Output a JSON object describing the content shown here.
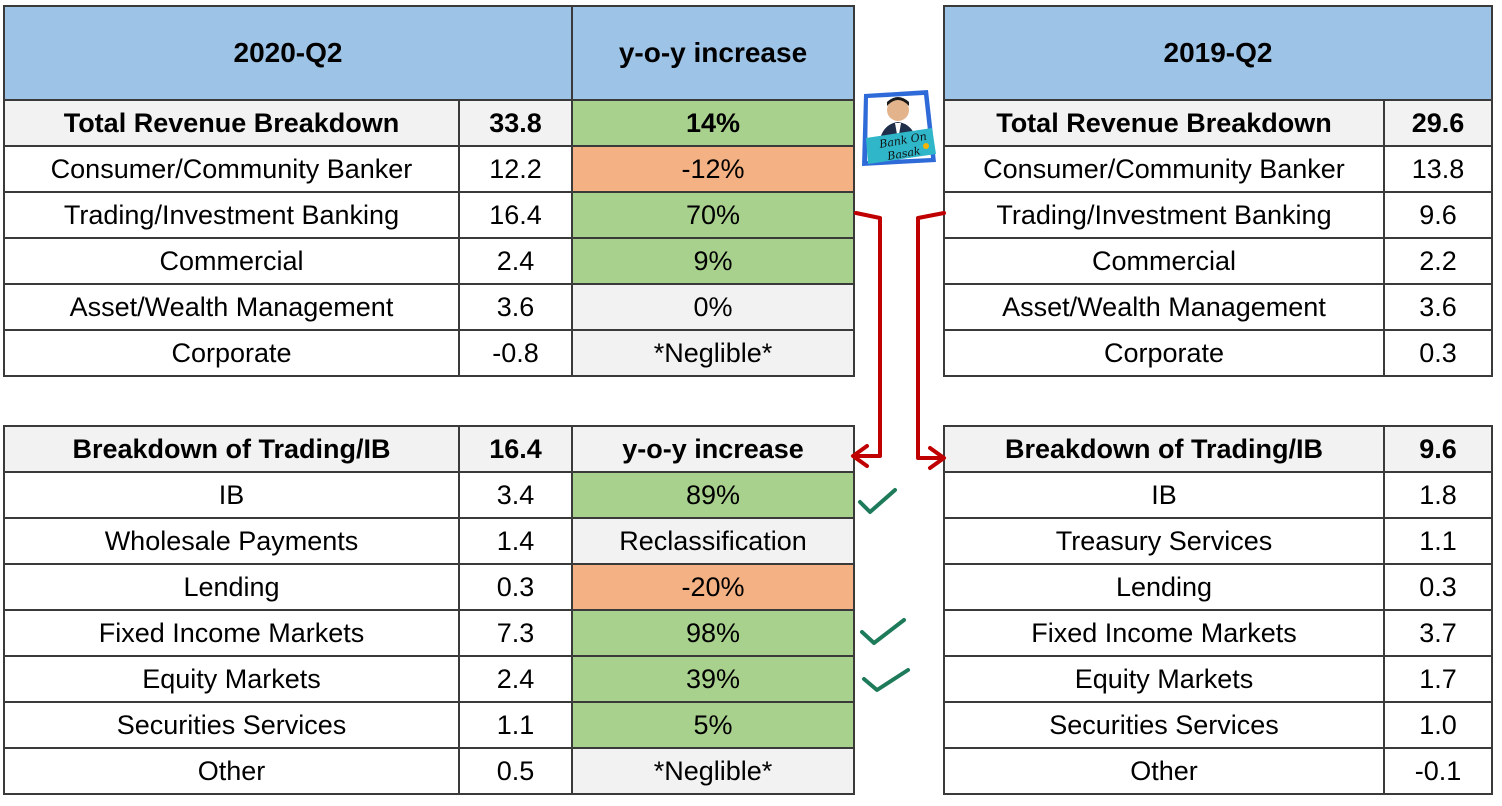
{
  "top_left": {
    "title": "2020-Q2",
    "yoy_title": "y-o-y increase",
    "total_label": "Total Revenue Breakdown",
    "total_value": "33.8",
    "total_yoy": "14%",
    "rows": [
      {
        "label": "Consumer/Community Banker",
        "value": "12.2",
        "yoy": "-12%"
      },
      {
        "label": "Trading/Investment Banking",
        "value": "16.4",
        "yoy": "70%"
      },
      {
        "label": "Commercial",
        "value": "2.4",
        "yoy": "9%"
      },
      {
        "label": "Asset/Wealth Management",
        "value": "3.6",
        "yoy": "0%"
      },
      {
        "label": "Corporate",
        "value": "-0.8",
        "yoy": "*Neglible*"
      }
    ]
  },
  "top_right": {
    "title": "2019-Q2",
    "total_label": "Total Revenue Breakdown",
    "total_value": "29.6",
    "rows": [
      {
        "label": "Consumer/Community Banker",
        "value": "13.8"
      },
      {
        "label": "Trading/Investment Banking",
        "value": "9.6"
      },
      {
        "label": "Commercial",
        "value": "2.2"
      },
      {
        "label": "Asset/Wealth Management",
        "value": "3.6"
      },
      {
        "label": "Corporate",
        "value": "0.3"
      }
    ]
  },
  "bottom_left": {
    "header_label": "Breakdown of Trading/IB",
    "header_value": "16.4",
    "header_yoy": "y-o-y increase",
    "rows": [
      {
        "label": "IB",
        "value": "3.4",
        "yoy": "89%"
      },
      {
        "label": "Wholesale Payments",
        "value": "1.4",
        "yoy": "Reclassification"
      },
      {
        "label": "Lending",
        "value": "0.3",
        "yoy": "-20%"
      },
      {
        "label": "Fixed Income Markets",
        "value": "7.3",
        "yoy": "98%"
      },
      {
        "label": "Equity Markets",
        "value": "2.4",
        "yoy": "39%"
      },
      {
        "label": "Securities Services",
        "value": "1.1",
        "yoy": "5%"
      },
      {
        "label": "Other",
        "value": "0.5",
        "yoy": "*Neglible*"
      }
    ]
  },
  "bottom_right": {
    "header_label": "Breakdown of Trading/IB",
    "header_value": "9.6",
    "rows": [
      {
        "label": "IB",
        "value": "1.8"
      },
      {
        "label": "Treasury Services",
        "value": "1.1"
      },
      {
        "label": "Lending",
        "value": "0.3"
      },
      {
        "label": "Fixed Income Markets",
        "value": "3.7"
      },
      {
        "label": "Equity Markets",
        "value": "1.7"
      },
      {
        "label": "Securities Services",
        "value": "1.0"
      },
      {
        "label": "Other",
        "value": "-0.1"
      }
    ]
  },
  "logo": {
    "text_line1": "Bank On",
    "text_line2": "Basak"
  },
  "colors": {
    "header_blue": "#9dc3e6",
    "positive_green": "#a9d18e",
    "negative_orange": "#f4b183",
    "arrow_red": "#c00000",
    "check_green": "#1e7b5a"
  }
}
